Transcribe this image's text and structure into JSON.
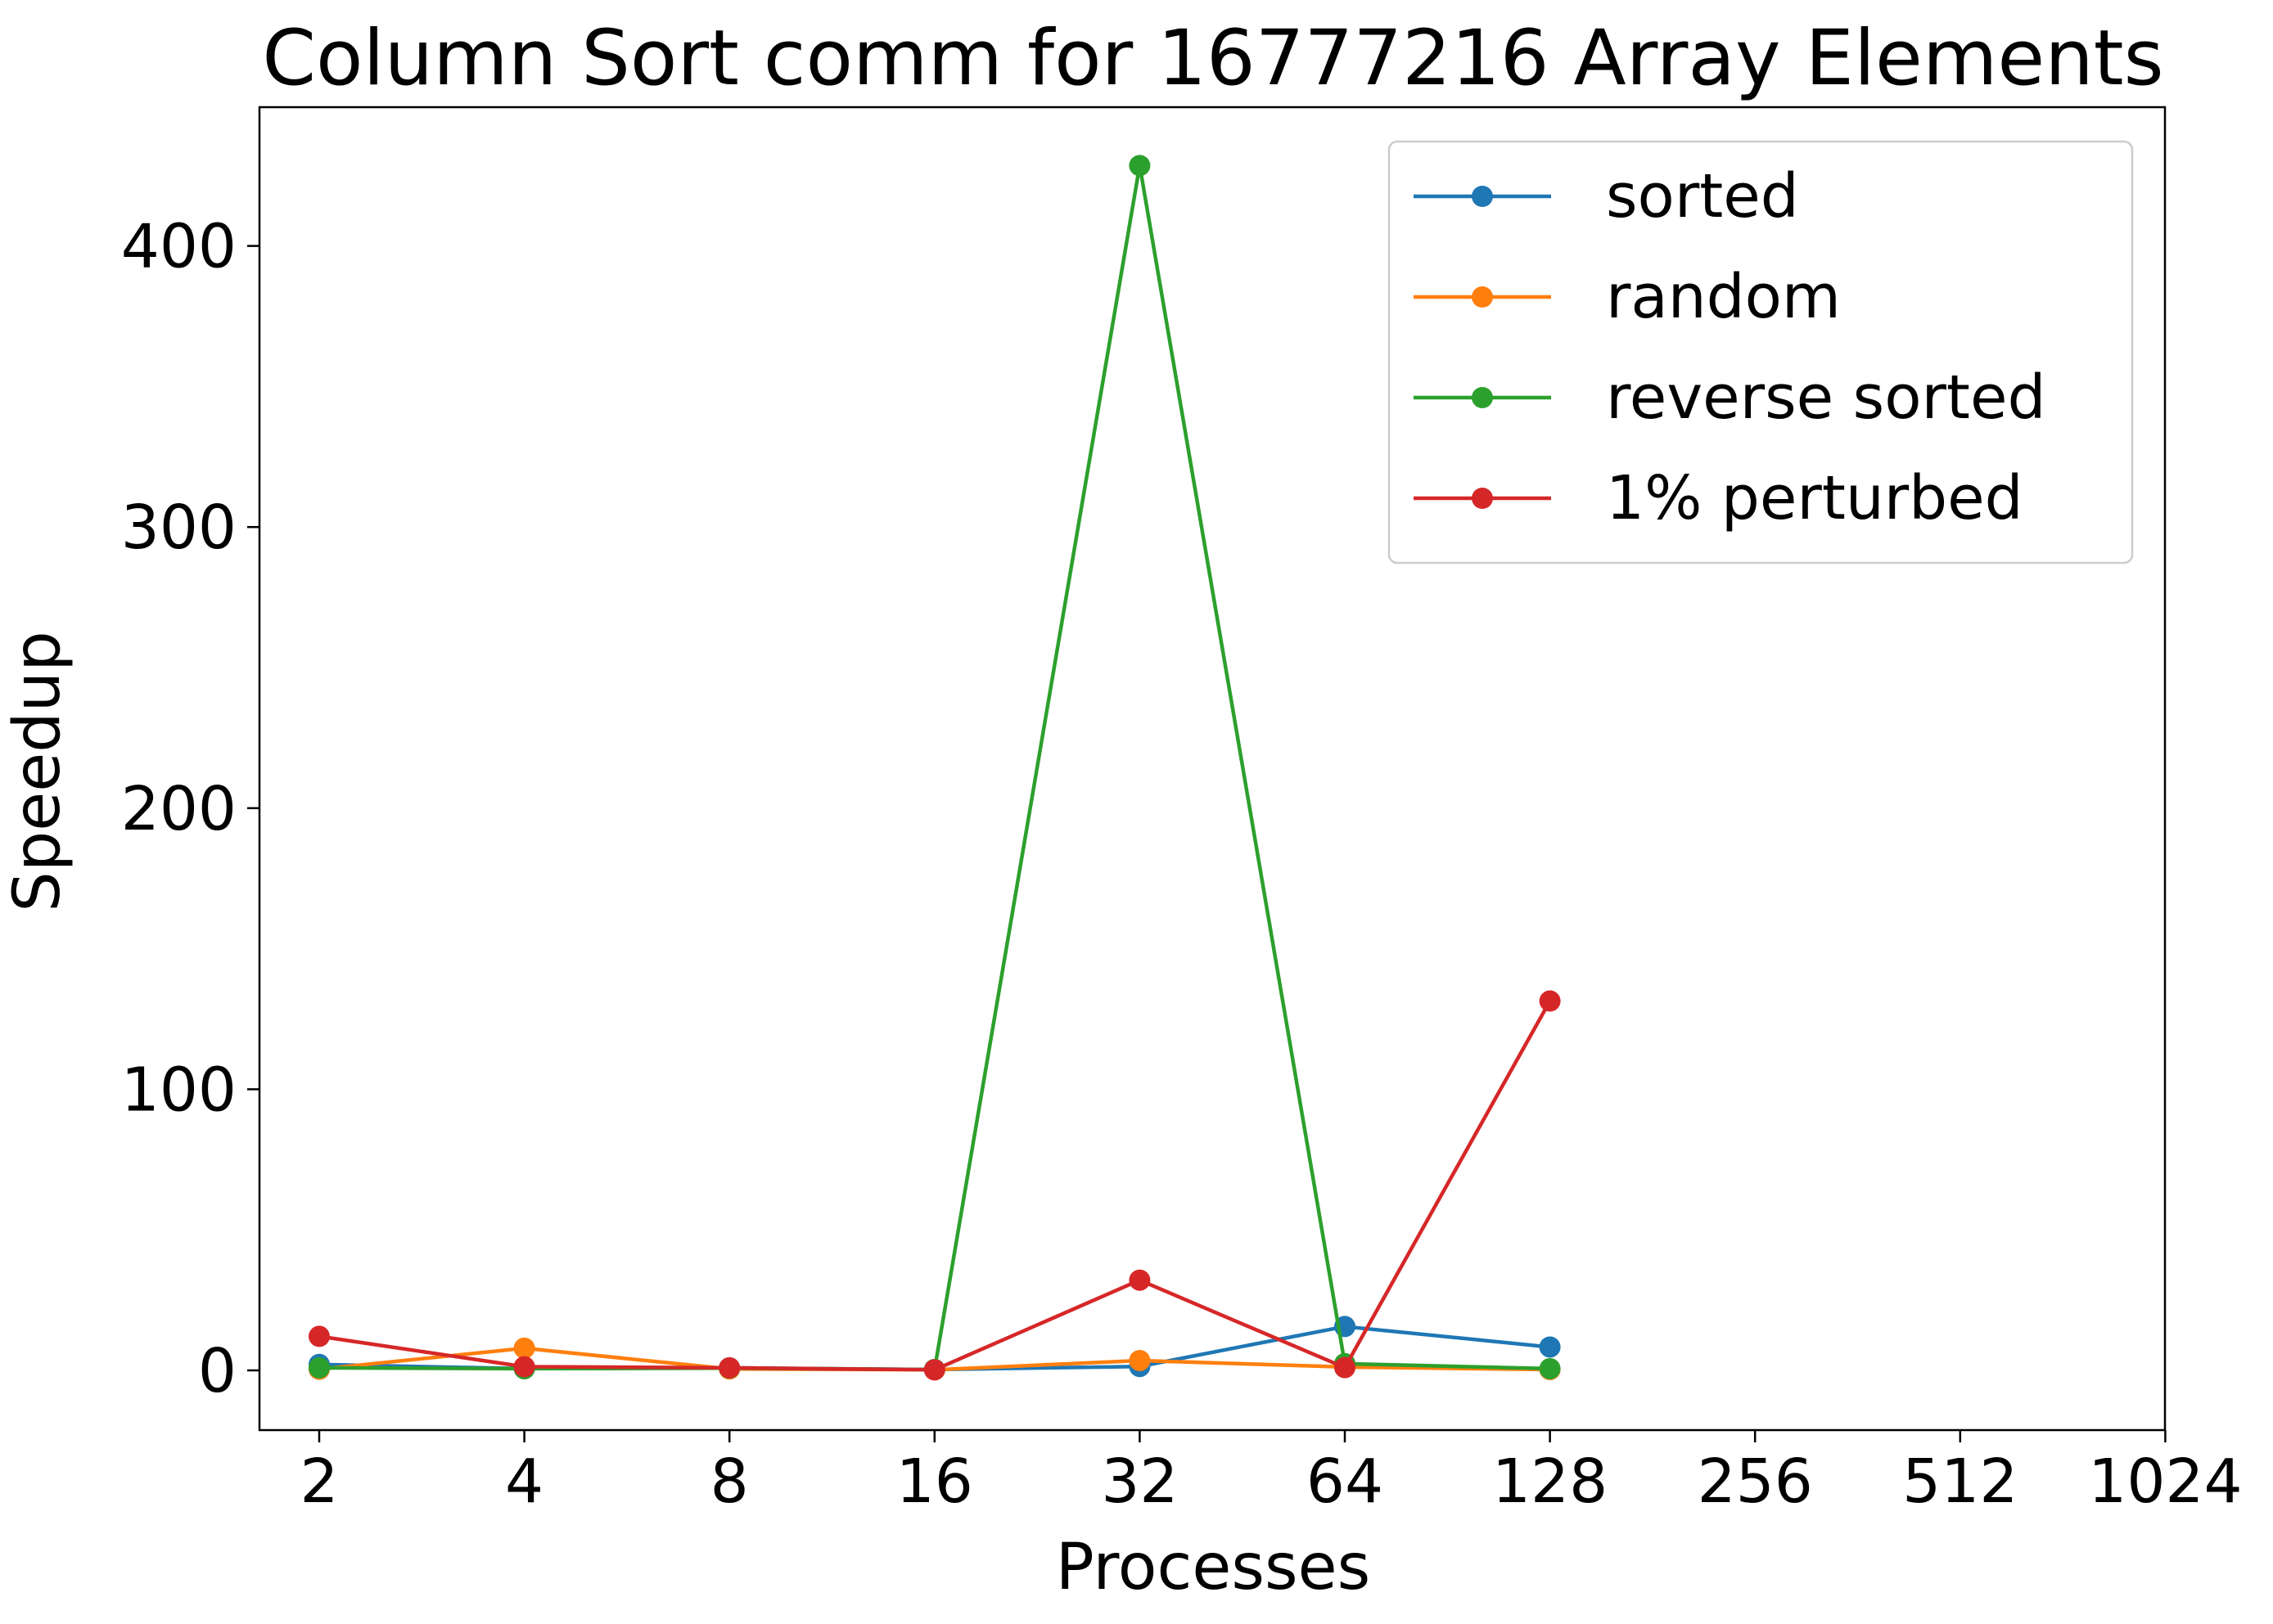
{
  "chart_data": {
    "type": "line",
    "title": "Column Sort comm for 16777216 Array Elements",
    "xlabel": "Processes",
    "ylabel": "Speedup",
    "x_scale": "log2",
    "x": [
      2,
      4,
      8,
      16,
      32,
      64,
      128
    ],
    "x_ticks": [
      "2",
      "4",
      "8",
      "16",
      "32",
      "64",
      "128",
      "256",
      "512",
      "1024"
    ],
    "y_ticks": [
      "0",
      "100",
      "200",
      "300",
      "400"
    ],
    "ylim": [
      -21,
      450
    ],
    "grid": false,
    "legend_position": "top-right",
    "series": [
      {
        "name": "sorted",
        "color": "#1f77b4",
        "values": [
          2.1,
          0.6,
          0.9,
          0.3,
          1.4,
          15.6,
          8.3
        ]
      },
      {
        "name": "random",
        "color": "#ff7f0e",
        "values": [
          0.4,
          7.9,
          0.5,
          0.2,
          3.5,
          1.2,
          0.3
        ]
      },
      {
        "name": "reverse sorted",
        "color": "#2ca02c",
        "values": [
          0.9,
          0.6,
          0.8,
          0.3,
          428.6,
          2.4,
          0.6
        ]
      },
      {
        "name": "1% perturbed",
        "color": "#d62728",
        "values": [
          12.1,
          1.3,
          0.9,
          0.2,
          32.1,
          1.0,
          131.4
        ]
      }
    ]
  }
}
